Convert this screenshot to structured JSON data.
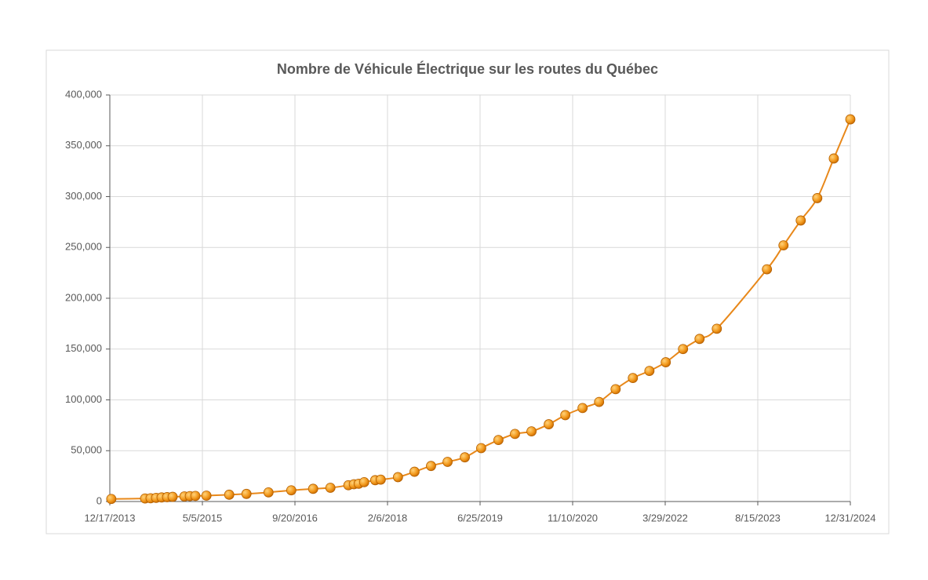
{
  "chart_data": {
    "type": "line",
    "title": "Nombre de Véhicule Électrique sur les routes du Québec",
    "x": [
      "2013-12-25",
      "2014-06-27",
      "2014-07-27",
      "2014-08-26",
      "2014-09-25",
      "2014-10-25",
      "2014-11-24",
      "2015-01-27",
      "2015-02-26",
      "2015-03-28",
      "2015-05-27",
      "2015-09-28",
      "2015-12-31",
      "2016-04-29",
      "2016-08-31",
      "2016-12-28",
      "2017-04-01",
      "2017-07-08",
      "2017-08-07",
      "2017-09-02",
      "2017-10-02",
      "2017-12-01",
      "2017-12-31",
      "2018-04-04",
      "2018-07-03",
      "2018-10-01",
      "2018-12-30",
      "2019-04-03",
      "2019-07-01",
      "2019-10-03",
      "2020-01-01",
      "2020-03-31",
      "2020-07-03",
      "2020-10-01",
      "2021-01-03",
      "2021-04-03",
      "2021-07-02",
      "2021-10-04",
      "2022-01-02",
      "2022-04-01",
      "2022-07-04",
      "2022-10-02",
      "2023-01-04",
      "2023-10-04",
      "2024-01-02",
      "2024-04-05",
      "2024-07-04",
      "2024-10-02",
      "2024-12-31"
    ],
    "series": [
      {
        "color": "#e8881a",
        "values": [
          2500,
          3000,
          3200,
          3600,
          4000,
          4300,
          4600,
          5000,
          5300,
          5500,
          5800,
          6700,
          7500,
          9000,
          11000,
          12500,
          13500,
          16000,
          17000,
          17500,
          19000,
          21000,
          21500,
          24000,
          29300,
          35000,
          39000,
          43500,
          52500,
          60500,
          66500,
          69000,
          76000,
          85000,
          92000,
          98000,
          110500,
          121500,
          128500,
          137000,
          150000,
          160000,
          170000,
          228500,
          252000,
          276500,
          298500,
          337500,
          376000
        ]
      }
    ],
    "xlim": [
      "2013-12-17",
      "2024-12-31"
    ],
    "xticks": [
      {
        "value": "2013-12-17",
        "label": "12/17/2013"
      },
      {
        "value": "2015-05-05",
        "label": "5/5/2015"
      },
      {
        "value": "2016-09-20",
        "label": "9/20/2016"
      },
      {
        "value": "2018-02-06",
        "label": "2/6/2018"
      },
      {
        "value": "2019-06-25",
        "label": "6/25/2019"
      },
      {
        "value": "2020-11-10",
        "label": "11/10/2020"
      },
      {
        "value": "2022-03-29",
        "label": "3/29/2022"
      },
      {
        "value": "2023-08-15",
        "label": "8/15/2023"
      },
      {
        "value": "2024-12-31",
        "label": "12/31/2024"
      }
    ],
    "ylim": [
      0,
      400000
    ],
    "yticks": [
      0,
      {
        "value": 50000,
        "label": "50,000"
      },
      {
        "value": 100000,
        "label": "100,000"
      },
      {
        "value": 150000,
        "label": "150,000"
      },
      {
        "value": 200000,
        "label": "200,000"
      },
      {
        "value": 250000,
        "label": "250,000"
      },
      {
        "value": 300000,
        "label": "300,000"
      },
      {
        "value": 350000,
        "label": "350,000"
      },
      {
        "value": 400000,
        "label": "400,000"
      }
    ],
    "grid": true
  }
}
